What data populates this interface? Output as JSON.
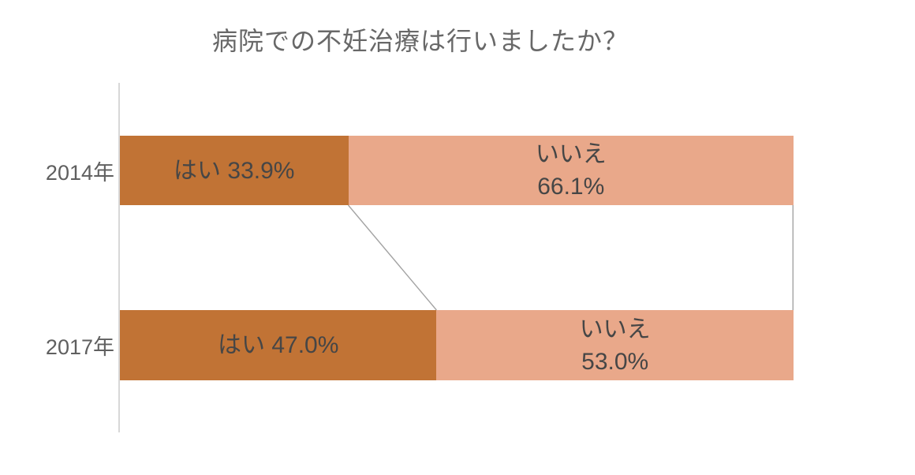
{
  "chart_data": {
    "type": "bar",
    "subtype": "horizontal-stacked",
    "title": "病院での不妊治療は行いましたか？",
    "categories": [
      "2014年",
      "2017年"
    ],
    "series": [
      {
        "name": "はい",
        "values": [
          33.9,
          47.0
        ],
        "color": "#C17335"
      },
      {
        "name": "いいえ",
        "values": [
          66.1,
          53.0
        ],
        "color": "#E9A88A"
      }
    ],
    "xlim": [
      0,
      100
    ],
    "unit": "%",
    "grid": false,
    "legend": "none",
    "series_connector_lines": true,
    "bar_labels": [
      {
        "yes": "はい 33.9%",
        "no_line1": "いいえ",
        "no_line2": "66.1%"
      },
      {
        "yes": "はい 47.0%",
        "no_line1": "いいえ",
        "no_line2": "53.0%"
      }
    ]
  },
  "colors": {
    "segment_yes": "#C17335",
    "segment_no": "#E9A88A",
    "bar_label_text": "#464646",
    "category_label_text": "#5F5F5F",
    "title_text": "#686868",
    "axis_line": "#D8D8D8",
    "connector_line": "#A3A3A3",
    "background": "#FFFFFF"
  }
}
